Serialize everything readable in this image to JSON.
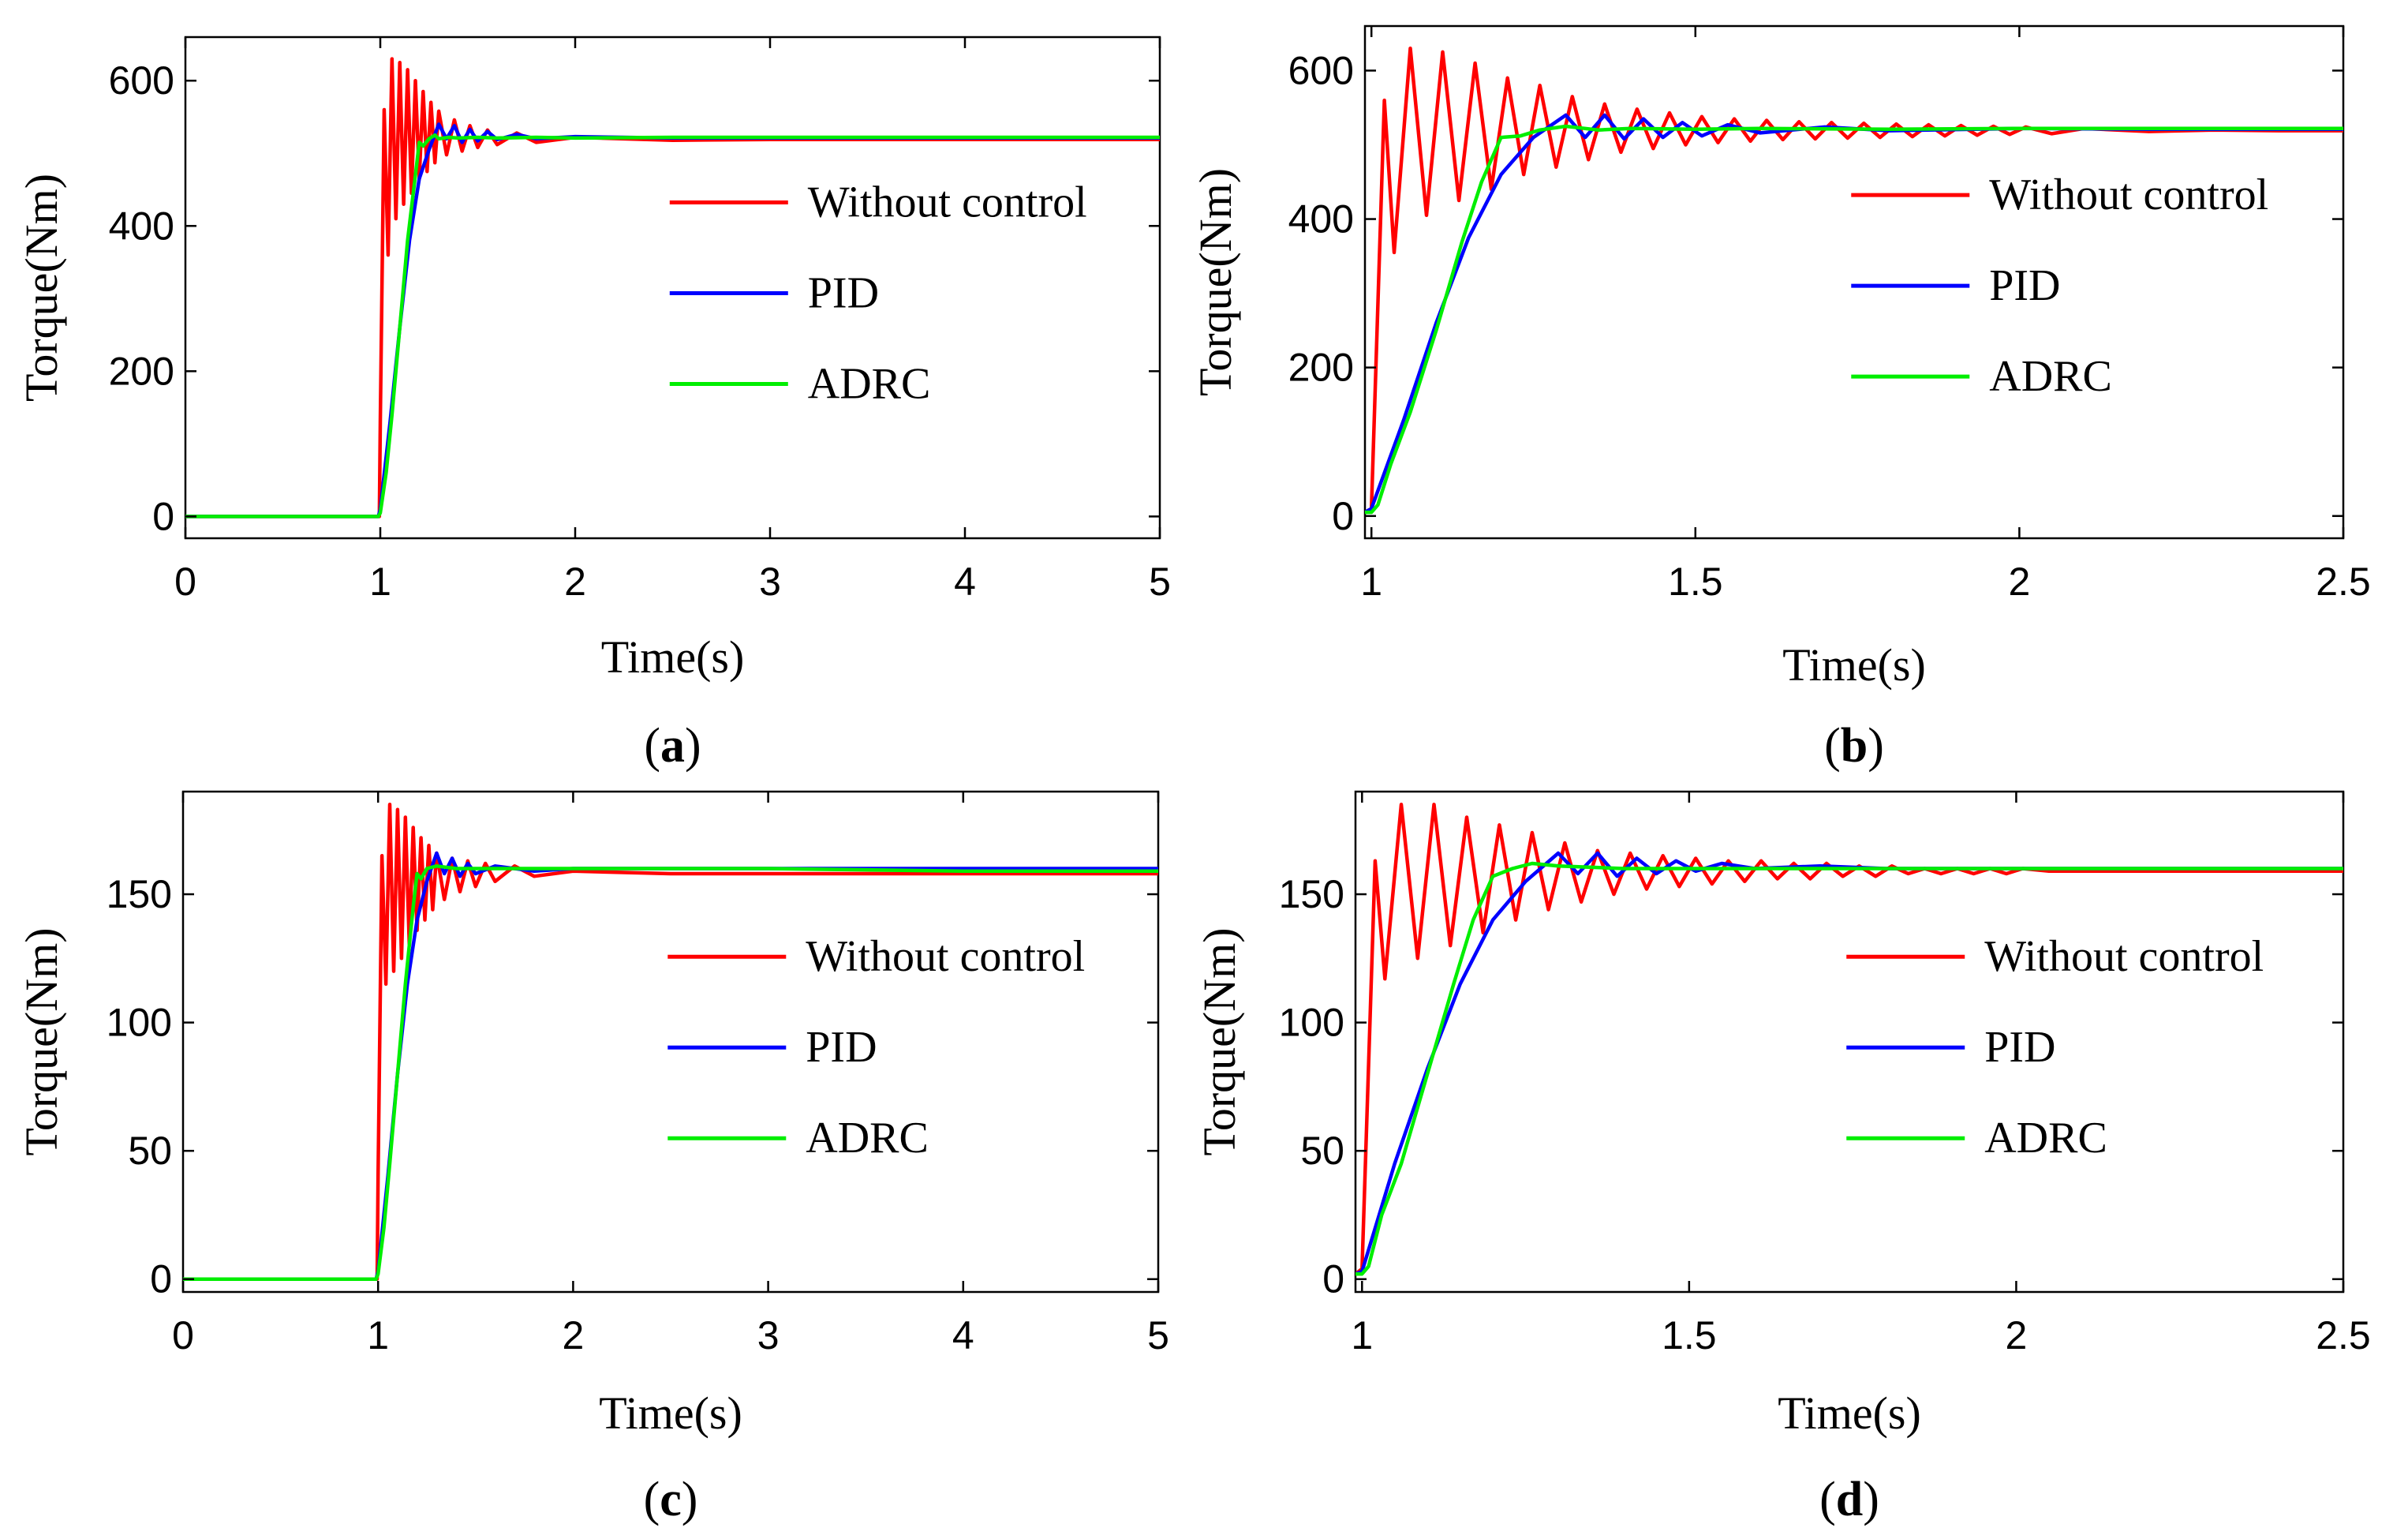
{
  "figure": {
    "series_colors": {
      "Without control": "#ff0000",
      "PID": "#0000ff",
      "ADRC": "#00ee00"
    }
  },
  "chart_data": [
    {
      "type": "line",
      "panel": "a",
      "caption": "a",
      "xlabel": "Time(s)",
      "ylabel": "Torque(Nm)",
      "xlim": [
        0,
        5
      ],
      "ylim": [
        -30,
        660
      ],
      "xticks": [
        0,
        1,
        2,
        3,
        4,
        5
      ],
      "xtick_labels": [
        "0",
        "1",
        "2",
        "3",
        "4",
        "5"
      ],
      "yticks": [
        0,
        200,
        400,
        600
      ],
      "ytick_labels": [
        "0",
        "200",
        "400",
        "600"
      ],
      "legend_position": "center-right",
      "series": [
        {
          "name": "Without control",
          "color": "#ff0000",
          "x": [
            0,
            0.995,
            1.0,
            1.02,
            1.04,
            1.06,
            1.08,
            1.1,
            1.12,
            1.14,
            1.16,
            1.18,
            1.2,
            1.22,
            1.24,
            1.26,
            1.28,
            1.3,
            1.34,
            1.38,
            1.42,
            1.46,
            1.5,
            1.55,
            1.6,
            1.7,
            1.8,
            2.0,
            2.5,
            3.0,
            4.0,
            5.0
          ],
          "y": [
            0,
            0,
            130,
            560,
            360,
            630,
            410,
            625,
            430,
            615,
            445,
            600,
            465,
            585,
            475,
            570,
            487,
            558,
            498,
            546,
            503,
            538,
            508,
            532,
            512,
            528,
            515,
            522,
            518,
            519,
            519,
            519
          ]
        },
        {
          "name": "PID",
          "color": "#0000ff",
          "x": [
            0,
            0.99,
            1.0,
            1.05,
            1.1,
            1.15,
            1.2,
            1.25,
            1.3,
            1.34,
            1.38,
            1.42,
            1.46,
            1.5,
            1.55,
            1.6,
            1.7,
            1.8,
            2.0,
            2.5,
            3.0,
            4.0,
            5.0
          ],
          "y": [
            0,
            0,
            10,
            130,
            260,
            380,
            465,
            505,
            540,
            520,
            538,
            515,
            533,
            517,
            530,
            519,
            526,
            520,
            523,
            521,
            521,
            521,
            521
          ]
        },
        {
          "name": "ADRC",
          "color": "#00ee00",
          "x": [
            0,
            0.99,
            1.0,
            1.03,
            1.06,
            1.1,
            1.14,
            1.18,
            1.2,
            1.22,
            1.25,
            1.28,
            1.3,
            1.35,
            1.4,
            1.5,
            1.6,
            1.8,
            2.0,
            2.5,
            3.0,
            4.0,
            5.0
          ],
          "y": [
            0,
            0,
            5,
            60,
            140,
            260,
            380,
            470,
            515,
            510,
            520,
            525,
            520,
            522,
            521,
            522,
            521,
            522,
            521,
            522,
            522,
            522,
            522
          ]
        }
      ]
    },
    {
      "type": "line",
      "panel": "b",
      "caption": "b",
      "xlabel": "Time(s)",
      "ylabel": "Torque(Nm)",
      "xlim": [
        0.99,
        2.5
      ],
      "ylim": [
        -30,
        660
      ],
      "xticks": [
        1,
        1.5,
        2,
        2.5
      ],
      "xtick_labels": [
        "1",
        "1.5",
        "2",
        "2.5"
      ],
      "yticks": [
        0,
        200,
        400,
        600
      ],
      "ytick_labels": [
        "0",
        "200",
        "400",
        "600"
      ],
      "legend_position": "center-right",
      "series": [
        {
          "name": "Without control",
          "color": "#ff0000",
          "x": [
            0.99,
            1.0,
            1.02,
            1.035,
            1.06,
            1.085,
            1.11,
            1.135,
            1.16,
            1.185,
            1.21,
            1.235,
            1.26,
            1.285,
            1.31,
            1.335,
            1.36,
            1.385,
            1.41,
            1.435,
            1.46,
            1.485,
            1.51,
            1.535,
            1.56,
            1.585,
            1.61,
            1.635,
            1.66,
            1.685,
            1.71,
            1.735,
            1.76,
            1.785,
            1.81,
            1.835,
            1.86,
            1.885,
            1.91,
            1.935,
            1.96,
            1.985,
            2.01,
            2.05,
            2.1,
            2.2,
            2.3,
            2.4,
            2.5
          ],
          "y": [
            5,
            10,
            560,
            355,
            630,
            405,
            625,
            425,
            610,
            440,
            590,
            460,
            580,
            470,
            565,
            480,
            555,
            490,
            548,
            495,
            543,
            500,
            538,
            503,
            535,
            505,
            533,
            507,
            531,
            508,
            530,
            509,
            529,
            510,
            528,
            511,
            527,
            512,
            526,
            513,
            525,
            514,
            524,
            515,
            522,
            518,
            520,
            519,
            519
          ]
        },
        {
          "name": "PID",
          "color": "#0000ff",
          "x": [
            0.99,
            1.0,
            1.05,
            1.1,
            1.15,
            1.2,
            1.25,
            1.3,
            1.33,
            1.36,
            1.39,
            1.42,
            1.45,
            1.48,
            1.51,
            1.55,
            1.6,
            1.7,
            1.8,
            2.0,
            2.2,
            2.5
          ],
          "y": [
            5,
            10,
            130,
            260,
            375,
            460,
            510,
            540,
            510,
            540,
            508,
            535,
            510,
            530,
            512,
            527,
            516,
            524,
            519,
            522,
            521,
            521
          ]
        },
        {
          "name": "ADRC",
          "color": "#00ee00",
          "x": [
            0.99,
            1.0,
            1.01,
            1.03,
            1.06,
            1.1,
            1.14,
            1.17,
            1.2,
            1.23,
            1.26,
            1.3,
            1.35,
            1.4,
            1.5,
            1.6,
            1.8,
            2.0,
            2.5
          ],
          "y": [
            5,
            5,
            15,
            70,
            140,
            250,
            370,
            450,
            510,
            512,
            520,
            525,
            520,
            522,
            521,
            522,
            521,
            522,
            522
          ]
        }
      ]
    },
    {
      "type": "line",
      "panel": "c",
      "caption": "c",
      "xlabel": "Time(s)",
      "ylabel": "Torque(Nm)",
      "xlim": [
        0,
        5
      ],
      "ylim": [
        -5,
        190
      ],
      "xticks": [
        0,
        1,
        2,
        3,
        4,
        5
      ],
      "xtick_labels": [
        "0",
        "1",
        "2",
        "3",
        "4",
        "5"
      ],
      "yticks": [
        0,
        50,
        100,
        150
      ],
      "ytick_labels": [
        "0",
        "50",
        "100",
        "150"
      ],
      "legend_position": "center-right",
      "series": [
        {
          "name": "Without control",
          "color": "#ff0000",
          "x": [
            0,
            0.995,
            1.0,
            1.02,
            1.04,
            1.06,
            1.08,
            1.1,
            1.12,
            1.14,
            1.16,
            1.18,
            1.2,
            1.22,
            1.24,
            1.26,
            1.28,
            1.3,
            1.34,
            1.38,
            1.42,
            1.46,
            1.5,
            1.55,
            1.6,
            1.7,
            1.8,
            2.0,
            2.5,
            3.0,
            4.0,
            5.0
          ],
          "y": [
            0,
            0,
            40,
            165,
            115,
            185,
            120,
            183,
            125,
            180,
            130,
            176,
            136,
            172,
            140,
            169,
            144,
            166,
            148,
            164,
            151,
            163,
            153,
            162,
            155,
            161,
            157,
            159,
            158,
            158,
            158,
            158
          ]
        },
        {
          "name": "PID",
          "color": "#0000ff",
          "x": [
            0,
            0.99,
            1.0,
            1.05,
            1.1,
            1.15,
            1.2,
            1.25,
            1.3,
            1.34,
            1.38,
            1.42,
            1.46,
            1.5,
            1.6,
            1.8,
            2.0,
            2.5,
            3.0,
            4.0,
            5.0
          ],
          "y": [
            0,
            0,
            3,
            40,
            80,
            115,
            140,
            155,
            166,
            158,
            164,
            157,
            162,
            158,
            161,
            159,
            160,
            160,
            160,
            160,
            160
          ]
        },
        {
          "name": "ADRC",
          "color": "#00ee00",
          "x": [
            0,
            0.99,
            1.0,
            1.03,
            1.06,
            1.1,
            1.14,
            1.18,
            1.2,
            1.22,
            1.25,
            1.3,
            1.4,
            1.6,
            2.0,
            3.0,
            4.0,
            5.0
          ],
          "y": [
            0,
            0,
            2,
            20,
            45,
            80,
            115,
            145,
            158,
            156,
            160,
            161,
            160,
            160,
            160,
            160,
            159,
            159
          ]
        }
      ]
    },
    {
      "type": "line",
      "panel": "d",
      "caption": "d",
      "xlabel": "Time(s)",
      "ylabel": "Torque(Nm)",
      "xlim": [
        0.99,
        2.5
      ],
      "ylim": [
        -5,
        190
      ],
      "xticks": [
        1,
        1.5,
        2,
        2.5
      ],
      "xtick_labels": [
        "1",
        "1.5",
        "2",
        "2.5"
      ],
      "yticks": [
        0,
        50,
        100,
        150
      ],
      "ytick_labels": [
        "0",
        "50",
        "100",
        "150"
      ],
      "legend_position": "center-right",
      "series": [
        {
          "name": "Without control",
          "color": "#ff0000",
          "x": [
            0.99,
            1.0,
            1.02,
            1.035,
            1.06,
            1.085,
            1.11,
            1.135,
            1.16,
            1.185,
            1.21,
            1.235,
            1.26,
            1.285,
            1.31,
            1.335,
            1.36,
            1.385,
            1.41,
            1.435,
            1.46,
            1.485,
            1.51,
            1.535,
            1.56,
            1.585,
            1.61,
            1.635,
            1.66,
            1.685,
            1.71,
            1.735,
            1.76,
            1.785,
            1.81,
            1.835,
            1.86,
            1.885,
            1.91,
            1.935,
            1.96,
            1.985,
            2.01,
            2.05,
            2.1,
            2.2,
            2.3,
            2.4,
            2.5
          ],
          "y": [
            2,
            4,
            163,
            117,
            185,
            125,
            185,
            130,
            180,
            135,
            177,
            140,
            174,
            144,
            170,
            147,
            167,
            150,
            166,
            152,
            165,
            153,
            164,
            154,
            163,
            155,
            163,
            156,
            162,
            156,
            162,
            157,
            161,
            157,
            161,
            158,
            160,
            158,
            160,
            158,
            160,
            158,
            160,
            159,
            159,
            159,
            159,
            159,
            159
          ]
        },
        {
          "name": "PID",
          "color": "#0000ff",
          "x": [
            0.99,
            1.0,
            1.05,
            1.1,
            1.15,
            1.2,
            1.25,
            1.3,
            1.33,
            1.36,
            1.39,
            1.42,
            1.45,
            1.48,
            1.51,
            1.55,
            1.6,
            1.7,
            1.8,
            2.0,
            2.2,
            2.5
          ],
          "y": [
            2,
            3,
            45,
            82,
            115,
            140,
            155,
            166,
            158,
            166,
            157,
            164,
            158,
            163,
            159,
            162,
            160,
            161,
            160,
            160,
            160,
            160
          ]
        },
        {
          "name": "ADRC",
          "color": "#00ee00",
          "x": [
            0.99,
            1.0,
            1.01,
            1.03,
            1.06,
            1.1,
            1.14,
            1.17,
            1.2,
            1.23,
            1.26,
            1.3,
            1.4,
            1.6,
            1.8,
            2.0,
            2.5
          ],
          "y": [
            2,
            2,
            5,
            25,
            45,
            80,
            115,
            140,
            157,
            160,
            162,
            161,
            160,
            160,
            160,
            160,
            160
          ]
        }
      ]
    }
  ]
}
